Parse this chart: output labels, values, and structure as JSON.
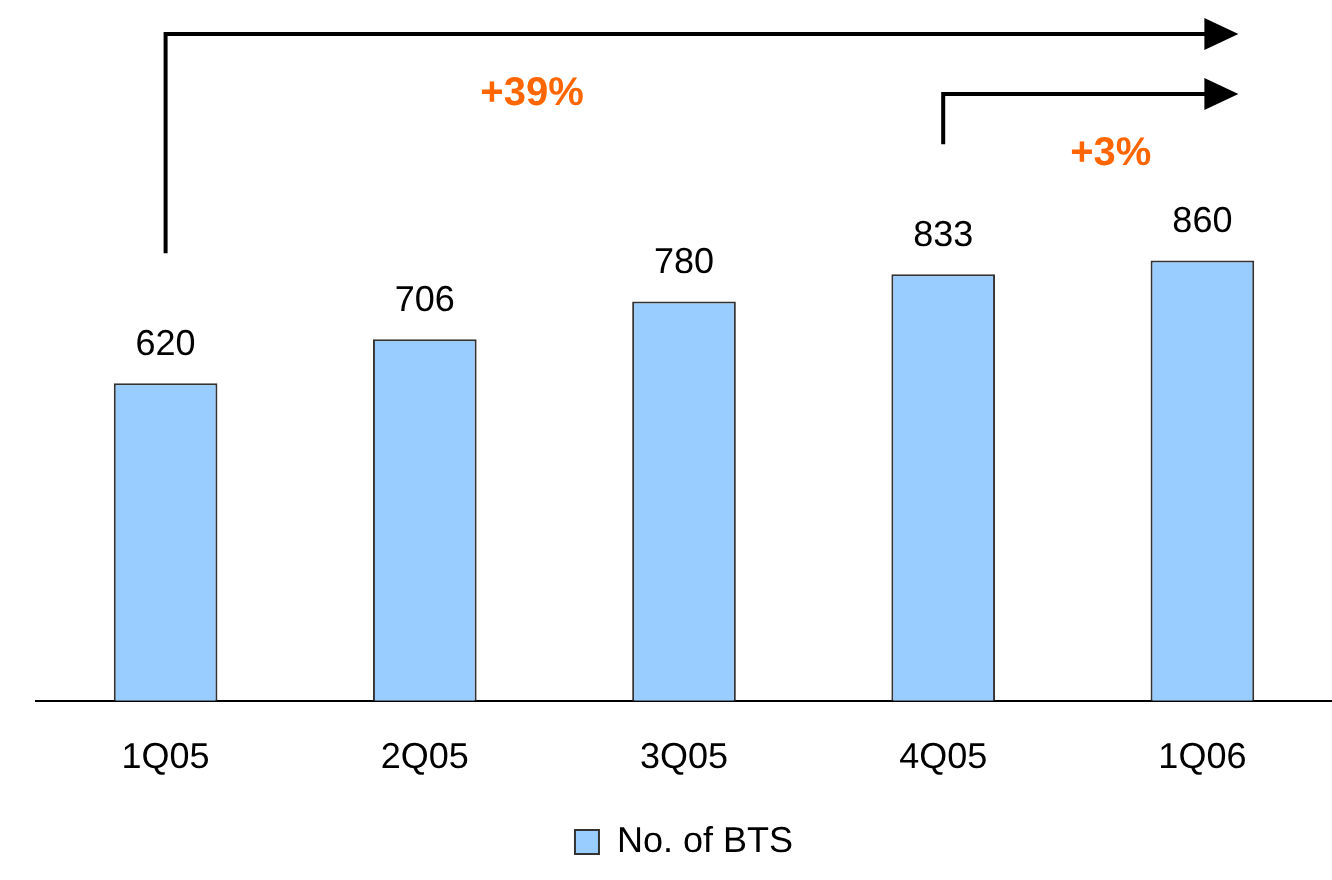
{
  "chart_data": {
    "type": "bar",
    "categories": [
      "1Q05",
      "2Q05",
      "3Q05",
      "4Q05",
      "1Q06"
    ],
    "series": [
      {
        "name": "No. of BTS",
        "color": "#99ccff",
        "values": [
          620,
          706,
          780,
          833,
          860
        ]
      }
    ],
    "data_labels": true,
    "legend": "bottom",
    "grid": false,
    "tick_labels": "x",
    "annotations": [
      "+39%",
      "+3%"
    ]
  }
}
